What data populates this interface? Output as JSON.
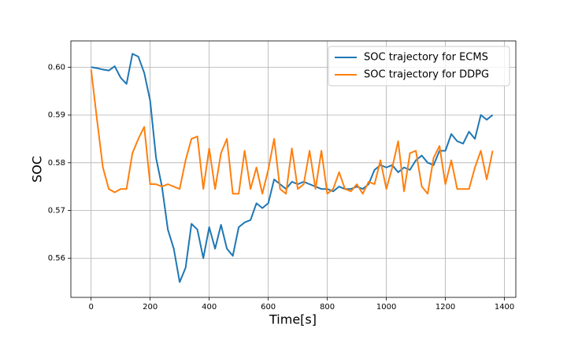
{
  "chart_data": {
    "type": "line",
    "xlabel": "Time[s]",
    "ylabel": "SOC",
    "x": [
      0,
      20,
      40,
      60,
      80,
      100,
      120,
      140,
      160,
      180,
      200,
      220,
      240,
      260,
      280,
      300,
      320,
      340,
      360,
      380,
      400,
      420,
      440,
      460,
      480,
      500,
      520,
      540,
      560,
      580,
      600,
      620,
      640,
      660,
      680,
      700,
      720,
      740,
      760,
      780,
      800,
      820,
      840,
      860,
      880,
      900,
      920,
      940,
      960,
      980,
      1000,
      1020,
      1040,
      1060,
      1080,
      1100,
      1120,
      1140,
      1160,
      1180,
      1200,
      1220,
      1240,
      1260,
      1280,
      1300,
      1320,
      1340,
      1360
    ],
    "series": [
      {
        "name": "SOC trajectory for ECMS",
        "color": "#1f77b4",
        "values": [
          0.6,
          0.5998,
          0.5995,
          0.5993,
          0.6002,
          0.5978,
          0.5965,
          0.6028,
          0.6022,
          0.5988,
          0.593,
          0.581,
          0.575,
          0.566,
          0.562,
          0.555,
          0.558,
          0.5672,
          0.566,
          0.56,
          0.5665,
          0.562,
          0.567,
          0.562,
          0.5605,
          0.5665,
          0.5675,
          0.568,
          0.5715,
          0.5705,
          0.5715,
          0.5765,
          0.5755,
          0.5745,
          0.576,
          0.5755,
          0.576,
          0.5755,
          0.575,
          0.5745,
          0.5745,
          0.574,
          0.575,
          0.5745,
          0.5745,
          0.575,
          0.5745,
          0.5755,
          0.5785,
          0.5795,
          0.579,
          0.5795,
          0.578,
          0.579,
          0.5785,
          0.5805,
          0.5815,
          0.58,
          0.5795,
          0.5825,
          0.5825,
          0.586,
          0.5845,
          0.584,
          0.5865,
          0.585,
          0.59,
          0.589,
          0.59
        ]
      },
      {
        "name": "SOC trajectory for DDPG",
        "color": "#ff7f0e",
        "values": [
          0.5995,
          0.589,
          0.579,
          0.5745,
          0.5738,
          0.5745,
          0.5745,
          0.582,
          0.585,
          0.5875,
          0.5755,
          0.5755,
          0.575,
          0.5755,
          0.575,
          0.5745,
          0.5805,
          0.585,
          0.5855,
          0.5745,
          0.583,
          0.5745,
          0.582,
          0.585,
          0.5735,
          0.5735,
          0.5825,
          0.5745,
          0.579,
          0.5735,
          0.5785,
          0.585,
          0.5745,
          0.5735,
          0.583,
          0.5745,
          0.5755,
          0.5825,
          0.5745,
          0.5825,
          0.5735,
          0.5745,
          0.578,
          0.5745,
          0.574,
          0.5755,
          0.5735,
          0.576,
          0.5755,
          0.5805,
          0.5745,
          0.579,
          0.5845,
          0.574,
          0.582,
          0.5825,
          0.575,
          0.5735,
          0.581,
          0.5835,
          0.5755,
          0.5805,
          0.5745,
          0.5745,
          0.5745,
          0.579,
          0.5825,
          0.5765,
          0.5825
        ]
      }
    ],
    "xlim": [
      -68.5,
      1438.5
    ],
    "ylim": [
      0.5518,
      0.6055
    ],
    "xticks": [
      0,
      200,
      400,
      600,
      800,
      1000,
      1200,
      1400
    ],
    "yticks": [
      0.56,
      0.57,
      0.58,
      0.59,
      {
        "value": 0.6,
        "label": "0.60"
      }
    ],
    "grid": true,
    "legend": "upper-right"
  }
}
